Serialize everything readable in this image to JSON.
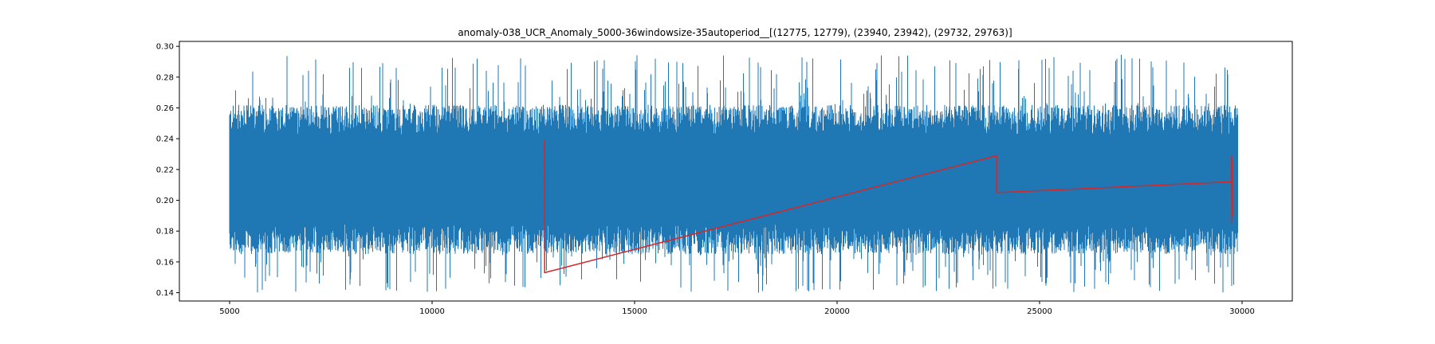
{
  "chart_data": {
    "type": "line",
    "title": "anomaly-038_UCR_Anomaly_5000-36windowsize-35autoperiod__[(12775, 12779), (23940, 23942), (29732, 29763)]",
    "xlabel": "",
    "ylabel": "",
    "xlim": [
      3760,
      31240
    ],
    "ylim": [
      0.1346,
      0.3032
    ],
    "xticks": [
      5000,
      10000,
      15000,
      20000,
      25000,
      30000
    ],
    "xtick_labels": [
      "5000",
      "10000",
      "15000",
      "20000",
      "25000",
      "30000"
    ],
    "yticks": [
      0.14,
      0.16,
      0.18,
      0.2,
      0.22,
      0.24,
      0.26,
      0.28,
      0.3
    ],
    "ytick_labels": [
      "0.14",
      "0.16",
      "0.18",
      "0.20",
      "0.22",
      "0.24",
      "0.26",
      "0.28",
      "0.30"
    ],
    "grid": false,
    "legend": "none",
    "colors": {
      "signal": "#1f77b4",
      "anomaly_overlay": "#d62728"
    },
    "series": [
      {
        "role": "signal",
        "x_range": [
          5000,
          29900
        ],
        "band_low": 0.165,
        "band_high": 0.262,
        "spike_min": 0.14,
        "spike_max": 0.295
      },
      {
        "role": "anomaly_overlay",
        "x": [
          12775,
          12777,
          12779,
          23940,
          23941,
          23942,
          29732,
          29740,
          29748,
          29755,
          29763
        ],
        "y": [
          0.239,
          0.2,
          0.153,
          0.229,
          0.215,
          0.205,
          0.212,
          0.229,
          0.185,
          0.226,
          0.19
        ]
      }
    ],
    "anomaly_intervals": [
      [
        12775,
        12779
      ],
      [
        23940,
        23942
      ],
      [
        29732,
        29763
      ]
    ]
  }
}
